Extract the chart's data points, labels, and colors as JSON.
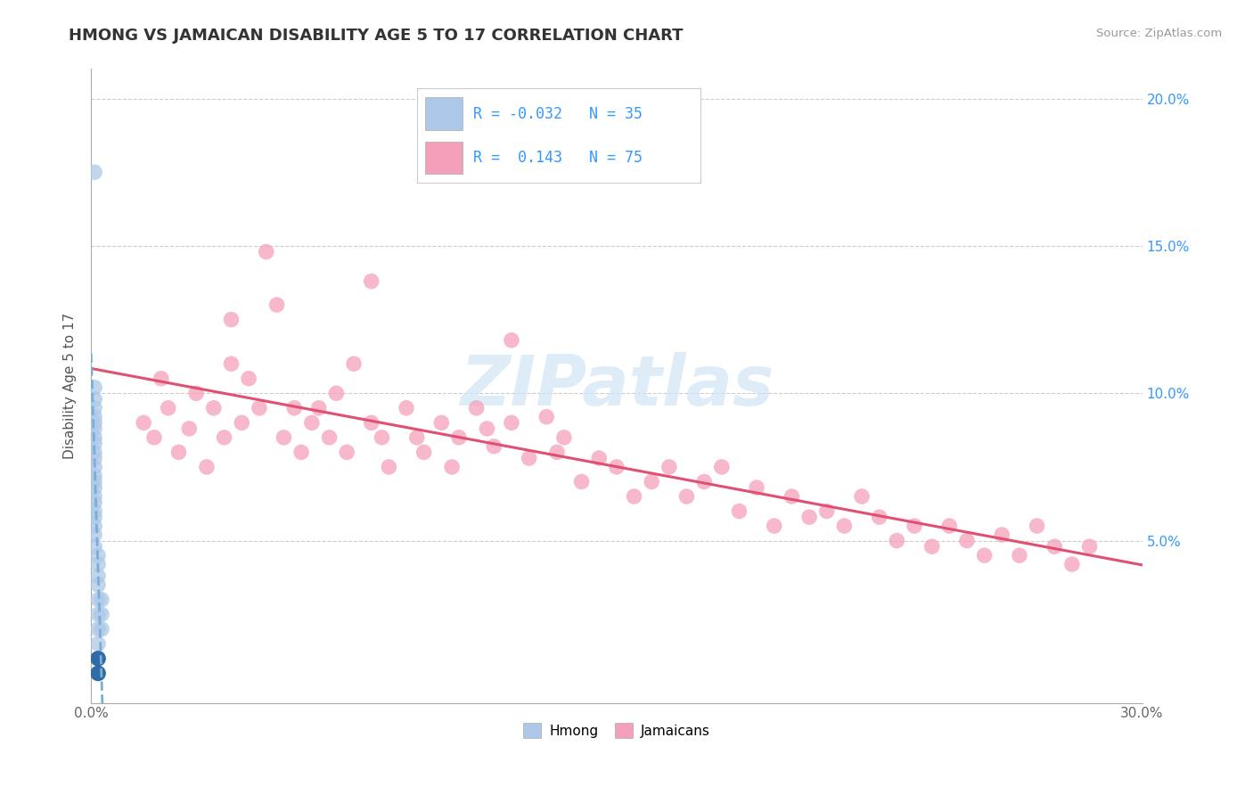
{
  "title": "HMONG VS JAMAICAN DISABILITY AGE 5 TO 17 CORRELATION CHART",
  "source": "Source: ZipAtlas.com",
  "ylabel": "Disability Age 5 to 17",
  "xlim": [
    0.0,
    0.3
  ],
  "ylim": [
    -0.005,
    0.21
  ],
  "hmong_R": -0.032,
  "hmong_N": 35,
  "jamaican_R": 0.143,
  "jamaican_N": 75,
  "hmong_color": "#adc8e8",
  "jamaican_color": "#f5a0bb",
  "hmong_solid_color": "#2060a0",
  "hmong_line_color": "#7aaed4",
  "jamaican_line_color": "#e05070",
  "watermark_color": "#cfe5f5",
  "watermark": "ZIPatlas",
  "background_color": "#ffffff",
  "grid_color": "#cccccc",
  "hmong_x": [
    0.001,
    0.001,
    0.001,
    0.001,
    0.001,
    0.001,
    0.001,
    0.001,
    0.001,
    0.001,
    0.001,
    0.001,
    0.001,
    0.001,
    0.001,
    0.001,
    0.001,
    0.001,
    0.001,
    0.001,
    0.001,
    0.001,
    0.002,
    0.002,
    0.002,
    0.002,
    0.002,
    0.002,
    0.002,
    0.002,
    0.002,
    0.002,
    0.003,
    0.003,
    0.003
  ],
  "hmong_y": [
    0.175,
    0.102,
    0.098,
    0.095,
    0.092,
    0.09,
    0.088,
    0.085,
    0.083,
    0.08,
    0.078,
    0.075,
    0.072,
    0.07,
    0.068,
    0.065,
    0.063,
    0.06,
    0.058,
    0.055,
    0.052,
    0.048,
    0.045,
    0.042,
    0.038,
    0.035,
    0.03,
    0.025,
    0.02,
    0.015,
    0.01,
    0.005,
    0.03,
    0.025,
    0.02
  ],
  "jamaican_x": [
    0.015,
    0.018,
    0.02,
    0.022,
    0.025,
    0.028,
    0.03,
    0.033,
    0.035,
    0.038,
    0.04,
    0.043,
    0.045,
    0.048,
    0.05,
    0.053,
    0.055,
    0.058,
    0.06,
    0.063,
    0.065,
    0.068,
    0.07,
    0.073,
    0.075,
    0.08,
    0.083,
    0.085,
    0.09,
    0.093,
    0.095,
    0.1,
    0.103,
    0.105,
    0.11,
    0.113,
    0.115,
    0.12,
    0.125,
    0.13,
    0.133,
    0.135,
    0.14,
    0.145,
    0.15,
    0.155,
    0.16,
    0.165,
    0.17,
    0.175,
    0.18,
    0.185,
    0.19,
    0.195,
    0.2,
    0.205,
    0.21,
    0.215,
    0.22,
    0.225,
    0.23,
    0.235,
    0.24,
    0.245,
    0.25,
    0.255,
    0.26,
    0.265,
    0.27,
    0.275,
    0.28,
    0.285,
    0.04,
    0.08,
    0.12
  ],
  "jamaican_y": [
    0.09,
    0.085,
    0.105,
    0.095,
    0.08,
    0.088,
    0.1,
    0.075,
    0.095,
    0.085,
    0.11,
    0.09,
    0.105,
    0.095,
    0.148,
    0.13,
    0.085,
    0.095,
    0.08,
    0.09,
    0.095,
    0.085,
    0.1,
    0.08,
    0.11,
    0.09,
    0.085,
    0.075,
    0.095,
    0.085,
    0.08,
    0.09,
    0.075,
    0.085,
    0.095,
    0.088,
    0.082,
    0.09,
    0.078,
    0.092,
    0.08,
    0.085,
    0.07,
    0.078,
    0.075,
    0.065,
    0.07,
    0.075,
    0.065,
    0.07,
    0.075,
    0.06,
    0.068,
    0.055,
    0.065,
    0.058,
    0.06,
    0.055,
    0.065,
    0.058,
    0.05,
    0.055,
    0.048,
    0.055,
    0.05,
    0.045,
    0.052,
    0.045,
    0.055,
    0.048,
    0.042,
    0.048,
    0.125,
    0.138,
    0.118
  ]
}
